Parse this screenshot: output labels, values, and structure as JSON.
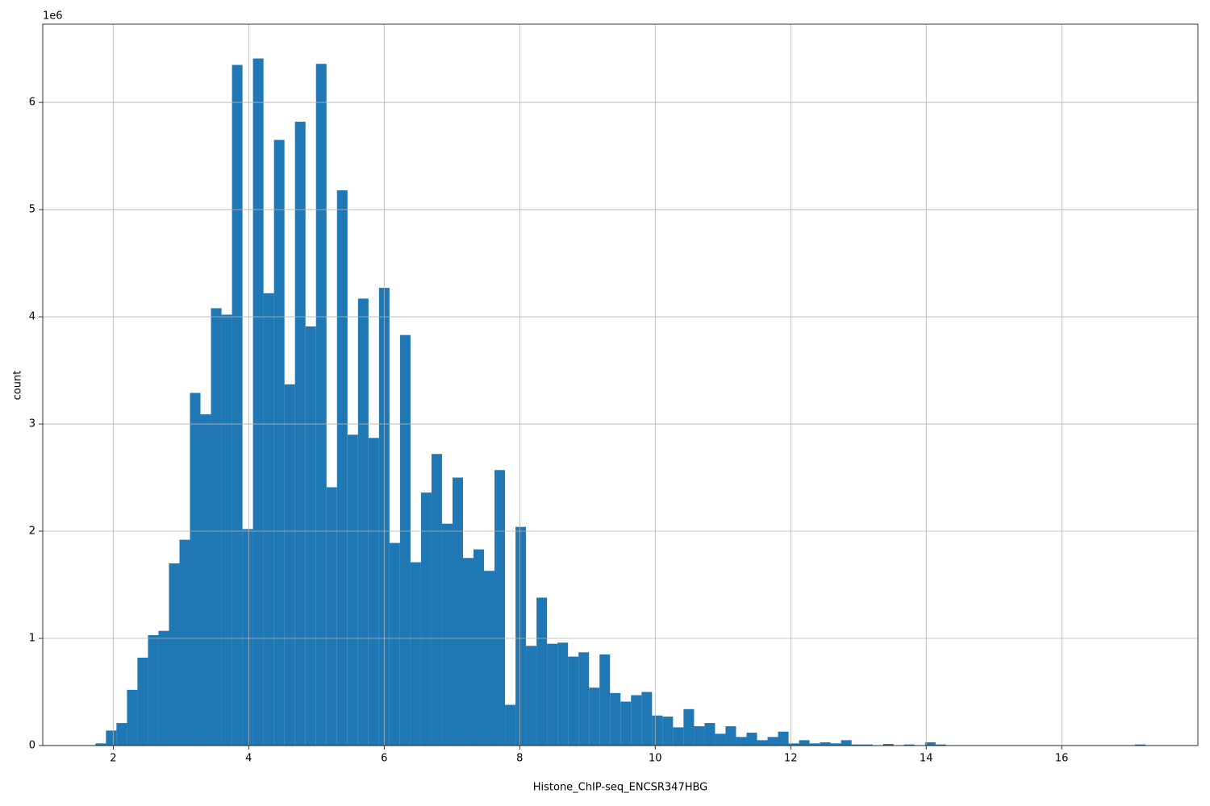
{
  "chart_data": {
    "type": "histogram",
    "xlabel": "Histone_ChIP-seq_ENCSR347HBG",
    "ylabel": "count",
    "offset_label": "1e6",
    "color": "#1f77b4",
    "grid": true,
    "bins": [
      1.738,
      1.893,
      2.048,
      2.203,
      2.358,
      2.513,
      2.668,
      2.823,
      2.978,
      3.133,
      3.288,
      3.443,
      3.598,
      3.753,
      3.908,
      4.063,
      4.218,
      4.373,
      4.528,
      4.683,
      4.838,
      4.993,
      5.148,
      5.303,
      5.458,
      5.613,
      5.768,
      5.923,
      6.078,
      6.233,
      6.388,
      6.543,
      6.698,
      6.853,
      7.008,
      7.163,
      7.318,
      7.473,
      7.628,
      7.783,
      7.938,
      8.093,
      8.248,
      8.403,
      8.558,
      8.713,
      8.868,
      9.023,
      9.178,
      9.333,
      9.488,
      9.643,
      9.798,
      9.953,
      10.108,
      10.263,
      10.418,
      10.573,
      10.728,
      10.883,
      11.038,
      11.193,
      11.348,
      11.503,
      11.658,
      11.813,
      11.968,
      12.123,
      12.278,
      12.433,
      12.588,
      12.743,
      12.898,
      13.053,
      13.208,
      13.363,
      13.518,
      13.673,
      13.828,
      13.983,
      14.138,
      14.293,
      14.448,
      14.603,
      14.758,
      14.913,
      15.068,
      15.223,
      15.378,
      15.533,
      15.688,
      15.843,
      15.998,
      16.153,
      16.308,
      16.463,
      16.618,
      16.773,
      16.928,
      17.083,
      17.238
    ],
    "values": [
      20000,
      140000,
      210000,
      520000,
      820000,
      1030000,
      1070000,
      1700000,
      1920000,
      3290000,
      3090000,
      4080000,
      4020000,
      6350000,
      2020000,
      6410000,
      4220000,
      5650000,
      3370000,
      5820000,
      3910000,
      6360000,
      2410000,
      5180000,
      2900000,
      4170000,
      2870000,
      4270000,
      1890000,
      3830000,
      1710000,
      2360000,
      2720000,
      2070000,
      2500000,
      1750000,
      1830000,
      1630000,
      2570000,
      380000,
      2040000,
      930000,
      1380000,
      950000,
      960000,
      830000,
      870000,
      540000,
      850000,
      490000,
      410000,
      470000,
      500000,
      280000,
      270000,
      170000,
      340000,
      180000,
      210000,
      110000,
      180000,
      80000,
      120000,
      50000,
      80000,
      130000,
      20000,
      50000,
      20000,
      30000,
      20000,
      50000,
      10000,
      10000,
      0,
      15000,
      0,
      10000,
      0,
      30000,
      10000,
      0,
      0,
      0,
      0,
      0,
      0,
      0,
      0,
      0,
      0,
      0,
      0,
      0,
      0,
      0,
      0,
      0,
      0,
      10000
    ],
    "xlim": [
      0.96,
      18.01
    ],
    "ylim": [
      0,
      6730000
    ],
    "xticks": [
      2,
      4,
      6,
      8,
      10,
      12,
      14,
      16
    ],
    "yticks": [
      0,
      {
        "value": 1000000,
        "label": "1"
      },
      {
        "value": 2000000,
        "label": "2"
      },
      {
        "value": 3000000,
        "label": "3"
      },
      {
        "value": 4000000,
        "label": "4"
      },
      {
        "value": 5000000,
        "label": "5"
      },
      {
        "value": 6000000,
        "label": "6"
      }
    ]
  }
}
